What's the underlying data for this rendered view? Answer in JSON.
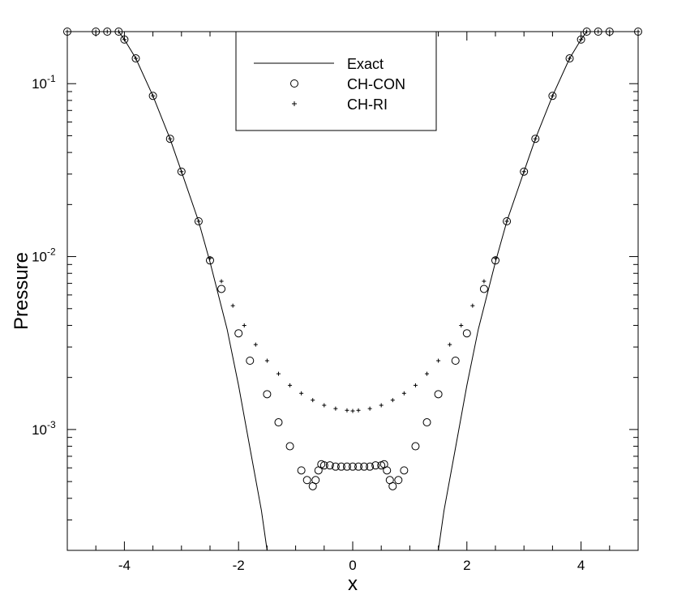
{
  "chart_data": {
    "type": "scatter",
    "xlabel": "x",
    "ylabel": "Pressure",
    "xlim": [
      -5,
      5
    ],
    "ylim": [
      0.0002,
      0.2
    ],
    "yscale": "log",
    "grid": false,
    "legend_position": "top-center",
    "x_ticks": [
      {
        "value": -4,
        "label": "-4"
      },
      {
        "value": -2,
        "label": "-2"
      },
      {
        "value": 0,
        "label": "0"
      },
      {
        "value": 2,
        "label": "2"
      },
      {
        "value": 4,
        "label": "4"
      }
    ],
    "y_ticks": [
      {
        "value": 0.001,
        "base": "10",
        "exp": "-3"
      },
      {
        "value": 0.01,
        "base": "10",
        "exp": "-2"
      },
      {
        "value": 0.1,
        "base": "10",
        "exp": "-1"
      }
    ],
    "series": [
      {
        "name": "Exact",
        "style": "line",
        "x": [
          -5,
          -4.3,
          -4.1,
          -4.0,
          -3.8,
          -3.5,
          -3.2,
          -3.0,
          -2.7,
          -2.5,
          -2.2,
          -2.0,
          -1.8,
          -1.6,
          -1.5
        ],
        "y": [
          0.2,
          0.2,
          0.2,
          0.18,
          0.14,
          0.085,
          0.048,
          0.031,
          0.016,
          0.0093,
          0.0038,
          0.0018,
          0.00078,
          0.00034,
          0.0002
        ]
      },
      {
        "name": "Exact",
        "style": "line",
        "x": [
          1.5,
          1.6,
          1.8,
          2.0,
          2.2,
          2.5,
          2.7,
          3.0,
          3.2,
          3.5,
          3.8,
          4.0,
          4.1,
          4.3,
          5
        ],
        "y": [
          0.0002,
          0.00034,
          0.00078,
          0.0018,
          0.0038,
          0.0093,
          0.016,
          0.031,
          0.048,
          0.085,
          0.14,
          0.18,
          0.2,
          0.2,
          0.2
        ]
      },
      {
        "name": "CH-CON",
        "style": "circle",
        "x": [
          -5,
          -4.5,
          -4.3,
          -4.1,
          -4.0,
          -3.8,
          -3.5,
          -3.2,
          -3.0,
          -2.7,
          -2.5,
          -2.3,
          -2.0,
          -1.8,
          -1.5,
          -1.3,
          -1.1,
          -0.9,
          -0.8,
          -0.7,
          -0.65,
          -0.6,
          -0.55,
          -0.5,
          -0.4,
          -0.3,
          -0.2,
          -0.1,
          0,
          0.1,
          0.2,
          0.3,
          0.4,
          0.5,
          0.55,
          0.6,
          0.65,
          0.7,
          0.8,
          0.9,
          1.1,
          1.3,
          1.5,
          1.8,
          2.0,
          2.3,
          2.5,
          2.7,
          3.0,
          3.2,
          3.5,
          3.8,
          4.0,
          4.1,
          4.3,
          4.5,
          5
        ],
        "y": [
          0.2,
          0.2,
          0.2,
          0.2,
          0.18,
          0.14,
          0.085,
          0.048,
          0.031,
          0.016,
          0.0095,
          0.0065,
          0.0036,
          0.0025,
          0.0016,
          0.0011,
          0.0008,
          0.00058,
          0.00051,
          0.00047,
          0.00051,
          0.00058,
          0.00063,
          0.00062,
          0.00062,
          0.00061,
          0.00061,
          0.00061,
          0.00061,
          0.00061,
          0.00061,
          0.00061,
          0.00062,
          0.00062,
          0.00063,
          0.00058,
          0.00051,
          0.00047,
          0.00051,
          0.00058,
          0.0008,
          0.0011,
          0.0016,
          0.0025,
          0.0036,
          0.0065,
          0.0095,
          0.016,
          0.031,
          0.048,
          0.085,
          0.14,
          0.18,
          0.2,
          0.2,
          0.2,
          0.2
        ]
      },
      {
        "name": "CH-RI",
        "style": "plus",
        "x": [
          -5,
          -4.5,
          -4.3,
          -4.1,
          -4.0,
          -3.8,
          -3.5,
          -3.2,
          -3.0,
          -2.7,
          -2.5,
          -2.3,
          -2.1,
          -1.9,
          -1.7,
          -1.5,
          -1.3,
          -1.1,
          -0.9,
          -0.7,
          -0.5,
          -0.3,
          -0.1,
          0,
          0.1,
          0.3,
          0.5,
          0.7,
          0.9,
          1.1,
          1.3,
          1.5,
          1.7,
          1.9,
          2.1,
          2.3,
          2.5,
          2.7,
          3.0,
          3.2,
          3.5,
          3.8,
          4.0,
          4.1,
          4.3,
          4.5,
          5
        ],
        "y": [
          0.2,
          0.2,
          0.2,
          0.2,
          0.18,
          0.14,
          0.085,
          0.048,
          0.031,
          0.016,
          0.0098,
          0.0072,
          0.0052,
          0.004,
          0.0031,
          0.0025,
          0.0021,
          0.0018,
          0.00162,
          0.00148,
          0.00138,
          0.00132,
          0.00129,
          0.00128,
          0.00129,
          0.00132,
          0.00138,
          0.00148,
          0.00162,
          0.0018,
          0.0021,
          0.0025,
          0.0031,
          0.004,
          0.0052,
          0.0072,
          0.0098,
          0.016,
          0.031,
          0.048,
          0.085,
          0.14,
          0.18,
          0.2,
          0.2,
          0.2,
          0.2
        ]
      }
    ]
  }
}
